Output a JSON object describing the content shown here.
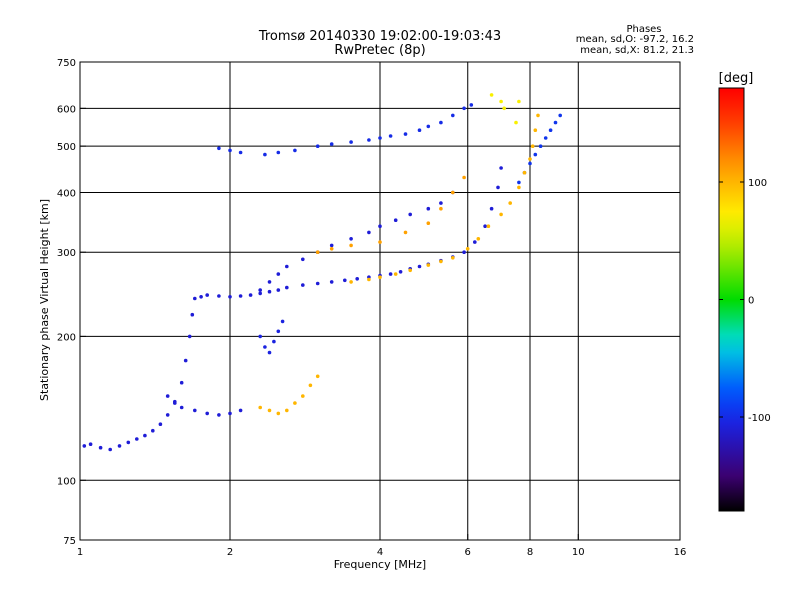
{
  "chart_data": {
    "type": "scatter",
    "title": "Tromsø 20140330 19:02:00-19:03:43",
    "subtitle": "RwPretec (8p)",
    "xlabel": "Frequency [MHz]",
    "ylabel": "Stationary phase Virtual Height [km]",
    "x_scale": "log",
    "y_scale": "log",
    "xlim": [
      1,
      16
    ],
    "ylim": [
      75,
      750
    ],
    "x_ticks": [
      1,
      2,
      4,
      6,
      8,
      10,
      16
    ],
    "y_ticks": [
      75,
      100,
      200,
      300,
      400,
      500,
      600,
      750
    ],
    "grid": true,
    "stats": {
      "heading": "Phases",
      "line1": "mean, sd,O: -97.2, 16.2",
      "line2": "mean, sd,X:  81.2, 21.3"
    },
    "colorbar": {
      "label": "[deg]",
      "ticks": [
        "100",
        "0",
        "-100"
      ],
      "tick_values": [
        100,
        0,
        -100
      ],
      "range": [
        -180,
        180
      ],
      "colormap": "rainbow"
    },
    "series": [
      {
        "color_value": -110,
        "points": [
          [
            1.02,
            118
          ],
          [
            1.05,
            119
          ],
          [
            1.1,
            117
          ],
          [
            1.15,
            116
          ],
          [
            1.2,
            118
          ],
          [
            1.25,
            120
          ],
          [
            1.3,
            122
          ],
          [
            1.35,
            124
          ],
          [
            1.4,
            127
          ],
          [
            1.45,
            131
          ],
          [
            1.5,
            137
          ],
          [
            1.55,
            146
          ],
          [
            1.6,
            160
          ],
          [
            1.63,
            178
          ],
          [
            1.66,
            200
          ],
          [
            1.68,
            222
          ],
          [
            1.7,
            240
          ],
          [
            1.75,
            242
          ],
          [
            1.8,
            244
          ],
          [
            1.9,
            243
          ],
          [
            2.0,
            242
          ],
          [
            2.1,
            243
          ],
          [
            2.2,
            244
          ],
          [
            2.3,
            246
          ],
          [
            2.4,
            248
          ],
          [
            2.5,
            250
          ],
          [
            2.6,
            253
          ],
          [
            2.8,
            256
          ],
          [
            3.0,
            258
          ],
          [
            3.2,
            260
          ],
          [
            3.4,
            262
          ],
          [
            3.6,
            264
          ],
          [
            3.8,
            266
          ],
          [
            4.0,
            268
          ],
          [
            4.2,
            270
          ],
          [
            4.4,
            273
          ],
          [
            4.6,
            277
          ],
          [
            4.8,
            280
          ],
          [
            5.0,
            283
          ],
          [
            5.3,
            288
          ],
          [
            5.6,
            293
          ],
          [
            5.9,
            300
          ],
          [
            6.2,
            315
          ],
          [
            6.5,
            340
          ],
          [
            6.7,
            370
          ],
          [
            6.9,
            410
          ],
          [
            7.0,
            450
          ]
        ]
      },
      {
        "color_value": -110,
        "points": [
          [
            1.5,
            150
          ],
          [
            1.55,
            145
          ],
          [
            1.6,
            142
          ],
          [
            1.7,
            140
          ],
          [
            1.8,
            138
          ],
          [
            1.9,
            137
          ],
          [
            2.0,
            138
          ],
          [
            2.1,
            140
          ]
        ]
      },
      {
        "color_value": -110,
        "points": [
          [
            2.3,
            250
          ],
          [
            2.4,
            260
          ],
          [
            2.5,
            270
          ],
          [
            2.6,
            280
          ],
          [
            2.8,
            290
          ],
          [
            3.0,
            300
          ],
          [
            3.2,
            310
          ],
          [
            3.5,
            320
          ],
          [
            3.8,
            330
          ],
          [
            4.0,
            340
          ],
          [
            4.3,
            350
          ],
          [
            4.6,
            360
          ],
          [
            5.0,
            370
          ],
          [
            5.3,
            380
          ],
          [
            5.6,
            400
          ]
        ]
      },
      {
        "color_value": -100,
        "points": [
          [
            1.9,
            495
          ],
          [
            2.0,
            490
          ],
          [
            2.1,
            485
          ],
          [
            2.35,
            480
          ],
          [
            2.5,
            485
          ],
          [
            2.7,
            490
          ],
          [
            3.0,
            500
          ],
          [
            3.2,
            505
          ],
          [
            3.5,
            510
          ],
          [
            3.8,
            515
          ],
          [
            4.0,
            520
          ],
          [
            4.2,
            525
          ],
          [
            4.5,
            530
          ],
          [
            4.8,
            540
          ],
          [
            5.0,
            550
          ],
          [
            5.3,
            560
          ],
          [
            5.6,
            580
          ],
          [
            5.9,
            600
          ],
          [
            6.1,
            610
          ]
        ]
      },
      {
        "color_value": -105,
        "points": [
          [
            2.3,
            200
          ],
          [
            2.35,
            190
          ],
          [
            2.4,
            185
          ],
          [
            2.45,
            195
          ],
          [
            2.5,
            205
          ],
          [
            2.55,
            215
          ]
        ]
      },
      {
        "color_value": -95,
        "points": [
          [
            7.6,
            420
          ],
          [
            7.8,
            440
          ],
          [
            8.0,
            460
          ],
          [
            8.2,
            480
          ],
          [
            8.4,
            500
          ],
          [
            8.6,
            520
          ],
          [
            8.8,
            540
          ],
          [
            9.0,
            560
          ],
          [
            9.2,
            580
          ]
        ]
      },
      {
        "color_value": 100,
        "points": [
          [
            3.5,
            260
          ],
          [
            3.8,
            263
          ],
          [
            4.0,
            266
          ],
          [
            4.3,
            270
          ],
          [
            4.6,
            275
          ],
          [
            5.0,
            282
          ],
          [
            5.3,
            287
          ],
          [
            5.6,
            292
          ],
          [
            6.0,
            305
          ],
          [
            6.3,
            320
          ],
          [
            6.6,
            340
          ],
          [
            7.0,
            360
          ],
          [
            7.3,
            380
          ],
          [
            7.6,
            410
          ],
          [
            7.8,
            440
          ],
          [
            8.0,
            470
          ],
          [
            8.1,
            500
          ],
          [
            8.2,
            540
          ],
          [
            8.3,
            580
          ]
        ]
      },
      {
        "color_value": 110,
        "points": [
          [
            3.0,
            300
          ],
          [
            3.2,
            305
          ],
          [
            3.5,
            310
          ],
          [
            4.0,
            315
          ],
          [
            4.5,
            330
          ],
          [
            5.0,
            345
          ],
          [
            5.3,
            370
          ],
          [
            5.6,
            400
          ],
          [
            5.9,
            430
          ]
        ]
      },
      {
        "color_value": 100,
        "points": [
          [
            2.3,
            142
          ],
          [
            2.4,
            140
          ],
          [
            2.5,
            138
          ],
          [
            2.6,
            140
          ],
          [
            2.7,
            145
          ],
          [
            2.8,
            150
          ],
          [
            2.9,
            158
          ],
          [
            3.0,
            165
          ]
        ]
      },
      {
        "color_value": 70,
        "points": [
          [
            7.0,
            620
          ],
          [
            7.1,
            600
          ],
          [
            7.5,
            560
          ],
          [
            7.6,
            620
          ],
          [
            6.7,
            640
          ]
        ]
      }
    ]
  }
}
